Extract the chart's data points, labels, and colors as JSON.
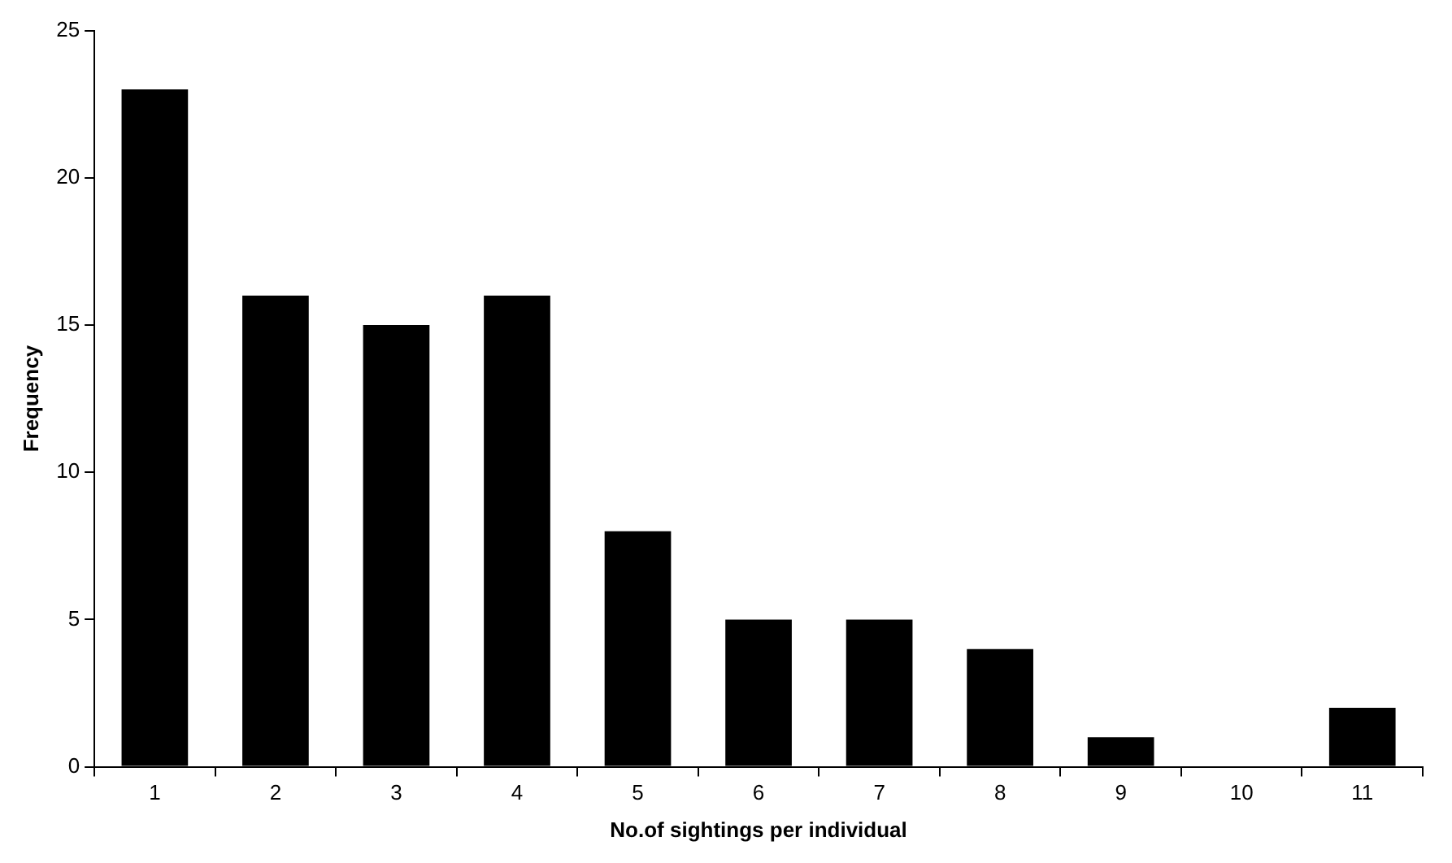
{
  "chart_data": {
    "type": "bar",
    "xlabel": "No.of sightings per individual",
    "ylabel": "Frequency",
    "categories": [
      "1",
      "2",
      "3",
      "4",
      "5",
      "6",
      "7",
      "8",
      "9",
      "10",
      "11"
    ],
    "values": [
      23,
      16,
      15,
      16,
      8,
      5,
      5,
      4,
      1,
      0,
      2
    ],
    "color": "#000000",
    "ylim": [
      0,
      25
    ],
    "yticks": [
      0,
      5,
      10,
      15,
      20,
      25
    ],
    "grid": false,
    "legend": false
  }
}
